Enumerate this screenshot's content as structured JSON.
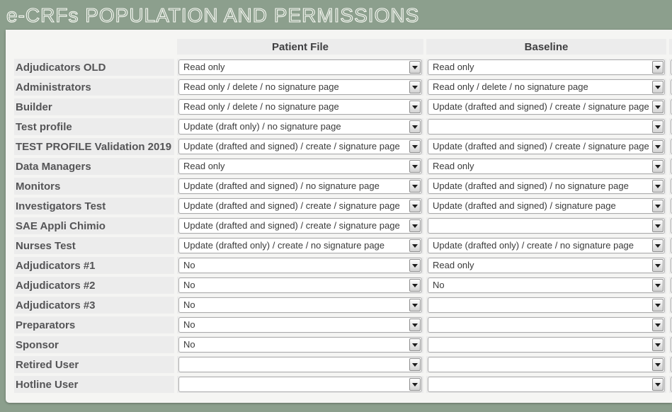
{
  "title": "e-CRFs POPULATION AND PERMISSIONS",
  "columns": {
    "patient_file": "Patient File",
    "baseline": "Baseline"
  },
  "colors": {
    "page_green": "#8C9F8D",
    "panel_bg": "#f5f5f3",
    "row_bg": "#ececec",
    "label_text": "#545456",
    "header_text": "#3f3f41",
    "combo_border": "#ababab"
  },
  "icons": {
    "dropdown_arrow": "triangle-down"
  },
  "rows": [
    {
      "profile": "Adjudicators OLD",
      "patient_file": "Read only",
      "baseline": "Read only"
    },
    {
      "profile": "Administrators",
      "patient_file": "Read only / delete / no signature page",
      "baseline": "Read only / delete / no signature page"
    },
    {
      "profile": "Builder",
      "patient_file": "Read only / delete / no signature page",
      "baseline": "Update (drafted and signed) / create / signature page"
    },
    {
      "profile": "Test profile",
      "patient_file": "Update (draft only) / no signature page",
      "baseline": ""
    },
    {
      "profile": "TEST PROFILE Validation 2019",
      "patient_file": "Update (drafted and signed) / create / signature page",
      "baseline": "Update (drafted and signed) / create / signature page"
    },
    {
      "profile": "Data Managers",
      "patient_file": "Read only",
      "baseline": "Read only"
    },
    {
      "profile": "Monitors",
      "patient_file": "Update (drafted and signed) / no signature page",
      "baseline": "Update (drafted and signed) / no signature page"
    },
    {
      "profile": "Investigators Test",
      "patient_file": "Update (drafted and signed) / create / signature page",
      "baseline": "Update (drafted and signed) / signature page"
    },
    {
      "profile": "SAE Appli Chimio",
      "patient_file": "Update (drafted and signed) / create / signature page",
      "baseline": ""
    },
    {
      "profile": "Nurses Test",
      "patient_file": "Update (drafted only) / create / no signature page",
      "baseline": "Update (drafted only) / create / no signature page"
    },
    {
      "profile": "Adjudicators #1",
      "patient_file": "No",
      "baseline": "Read only"
    },
    {
      "profile": "Adjudicators #2",
      "patient_file": "No",
      "baseline": "No"
    },
    {
      "profile": "Adjudicators #3",
      "patient_file": "No",
      "baseline": ""
    },
    {
      "profile": "Preparators",
      "patient_file": "No",
      "baseline": ""
    },
    {
      "profile": "Sponsor",
      "patient_file": "No",
      "baseline": ""
    },
    {
      "profile": "Retired User",
      "patient_file": "",
      "baseline": ""
    },
    {
      "profile": "Hotline User",
      "patient_file": "",
      "baseline": ""
    }
  ]
}
